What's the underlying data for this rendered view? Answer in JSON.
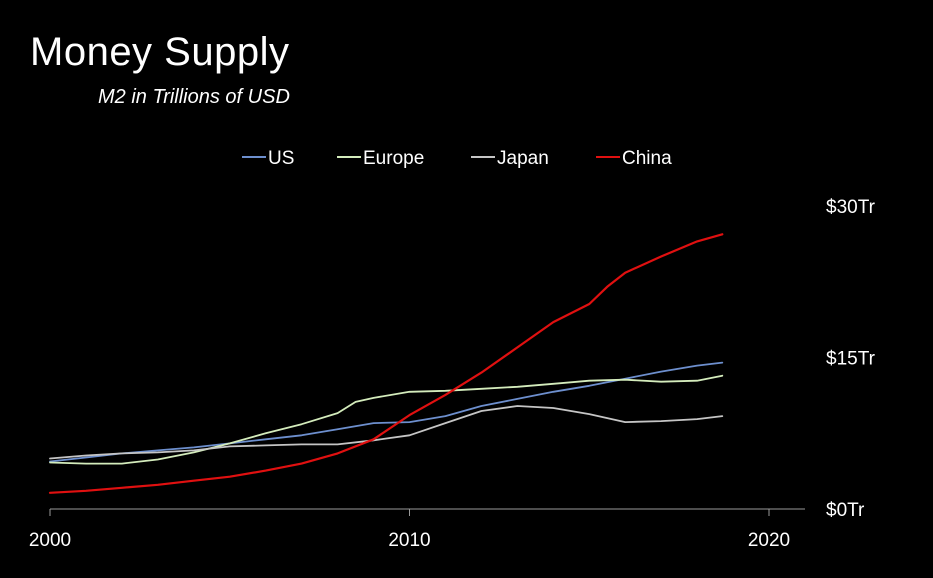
{
  "chart_data": {
    "type": "line",
    "title": "Money Supply",
    "subtitle": "M2 in Trillions of USD",
    "xlabel": "",
    "ylabel": "",
    "xlim": [
      2000,
      2021
    ],
    "ylim": [
      0,
      30
    ],
    "x_ticks": [
      {
        "value": 2000,
        "label": "2000"
      },
      {
        "value": 2010,
        "label": "2010"
      },
      {
        "value": 2020,
        "label": "2020"
      }
    ],
    "y_ticks": [
      {
        "value": 0,
        "label": "$0Tr"
      },
      {
        "value": 15,
        "label": "$15Tr"
      },
      {
        "value": 30,
        "label": "$30Tr"
      }
    ],
    "grid": false,
    "legend_position": "top-center",
    "series": [
      {
        "name": "US",
        "color": "#6d8fce",
        "points": [
          [
            2000,
            4.7
          ],
          [
            2001,
            5.1
          ],
          [
            2002,
            5.5
          ],
          [
            2003,
            5.8
          ],
          [
            2004,
            6.1
          ],
          [
            2005,
            6.5
          ],
          [
            2006,
            6.9
          ],
          [
            2007,
            7.3
          ],
          [
            2008,
            7.9
          ],
          [
            2009,
            8.5
          ],
          [
            2010,
            8.6
          ],
          [
            2011,
            9.2
          ],
          [
            2012,
            10.2
          ],
          [
            2013,
            10.9
          ],
          [
            2014,
            11.6
          ],
          [
            2015,
            12.2
          ],
          [
            2016,
            12.9
          ],
          [
            2017,
            13.6
          ],
          [
            2018,
            14.2
          ],
          [
            2018.7,
            14.5
          ]
        ]
      },
      {
        "name": "Europe",
        "color": "#d4ecbc",
        "points": [
          [
            2000,
            4.6
          ],
          [
            2001,
            4.5
          ],
          [
            2002,
            4.5
          ],
          [
            2003,
            4.9
          ],
          [
            2004,
            5.6
          ],
          [
            2005,
            6.5
          ],
          [
            2006,
            7.5
          ],
          [
            2007,
            8.4
          ],
          [
            2008,
            9.5
          ],
          [
            2008.5,
            10.6
          ],
          [
            2009,
            11.0
          ],
          [
            2010,
            11.6
          ],
          [
            2011,
            11.7
          ],
          [
            2012,
            11.9
          ],
          [
            2013,
            12.1
          ],
          [
            2014,
            12.4
          ],
          [
            2015,
            12.7
          ],
          [
            2016,
            12.8
          ],
          [
            2017,
            12.6
          ],
          [
            2018,
            12.7
          ],
          [
            2018.7,
            13.2
          ]
        ]
      },
      {
        "name": "Japan",
        "color": "#c5c5c5",
        "points": [
          [
            2000,
            5.0
          ],
          [
            2001,
            5.3
          ],
          [
            2002,
            5.5
          ],
          [
            2003,
            5.6
          ],
          [
            2004,
            5.8
          ],
          [
            2005,
            6.2
          ],
          [
            2006,
            6.3
          ],
          [
            2007,
            6.4
          ],
          [
            2008,
            6.4
          ],
          [
            2009,
            6.8
          ],
          [
            2010,
            7.3
          ],
          [
            2011,
            8.5
          ],
          [
            2012,
            9.7
          ],
          [
            2013,
            10.2
          ],
          [
            2014,
            10.0
          ],
          [
            2015,
            9.4
          ],
          [
            2016,
            8.6
          ],
          [
            2017,
            8.7
          ],
          [
            2018,
            8.9
          ],
          [
            2018.7,
            9.2
          ]
        ]
      },
      {
        "name": "China",
        "color": "#e01010",
        "points": [
          [
            2000,
            1.6
          ],
          [
            2001,
            1.8
          ],
          [
            2002,
            2.1
          ],
          [
            2003,
            2.4
          ],
          [
            2004,
            2.8
          ],
          [
            2005,
            3.2
          ],
          [
            2006,
            3.8
          ],
          [
            2007,
            4.5
          ],
          [
            2008,
            5.5
          ],
          [
            2009,
            6.9
          ],
          [
            2010,
            9.3
          ],
          [
            2011,
            11.3
          ],
          [
            2012,
            13.5
          ],
          [
            2013,
            16.0
          ],
          [
            2014,
            18.5
          ],
          [
            2015,
            20.3
          ],
          [
            2015.5,
            22.0
          ],
          [
            2016,
            23.4
          ],
          [
            2017,
            25.0
          ],
          [
            2018,
            26.5
          ],
          [
            2018.7,
            27.2
          ]
        ]
      }
    ]
  }
}
